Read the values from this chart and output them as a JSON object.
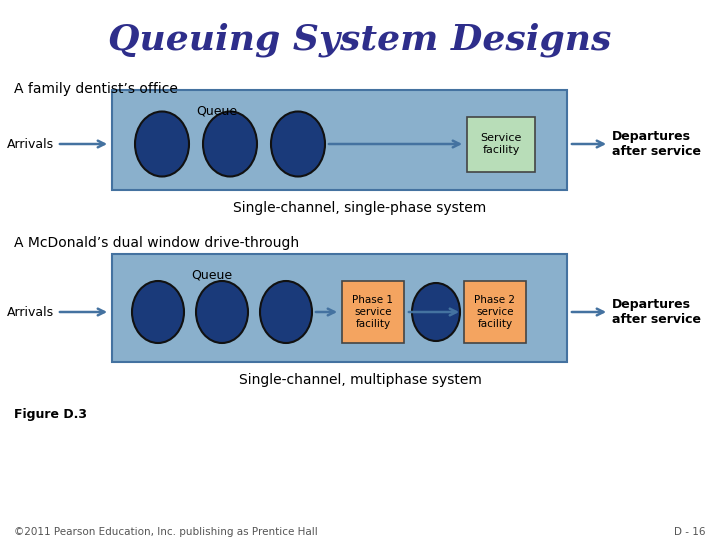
{
  "title": "Queuing System Designs",
  "title_color": "#2e2e8b",
  "title_fontsize": 26,
  "bg_color": "#ffffff",
  "box_fill": "#8ab0cc",
  "box_edge": "#4472a0",
  "circle_fill": "#1a3a7a",
  "circle_edge": "#111111",
  "service_box_fill": "#b8ddb8",
  "service_box_edge": "#444444",
  "phase_box_fill": "#f4a460",
  "phase_box_edge": "#444444",
  "arrow_color": "#4472a0",
  "text_color": "#000000",
  "label1": "A family dentist’s office",
  "label2": "A McDonald’s dual window drive-through",
  "caption1": "Single-channel, single-phase system",
  "caption2": "Single-channel, multiphase system",
  "arrivals_label": "Arrivals",
  "departures_label": "Departures\nafter service",
  "queue_label": "Queue",
  "service_label": "Service\nfacility",
  "phase1_label": "Phase 1\nservice\nfacility",
  "phase2_label": "Phase 2\nservice\nfacility",
  "figure_label": "Figure D.3",
  "copyright": "©2011 Pearson Education, Inc. publishing as Prentice Hall",
  "page_label": "D - 16"
}
